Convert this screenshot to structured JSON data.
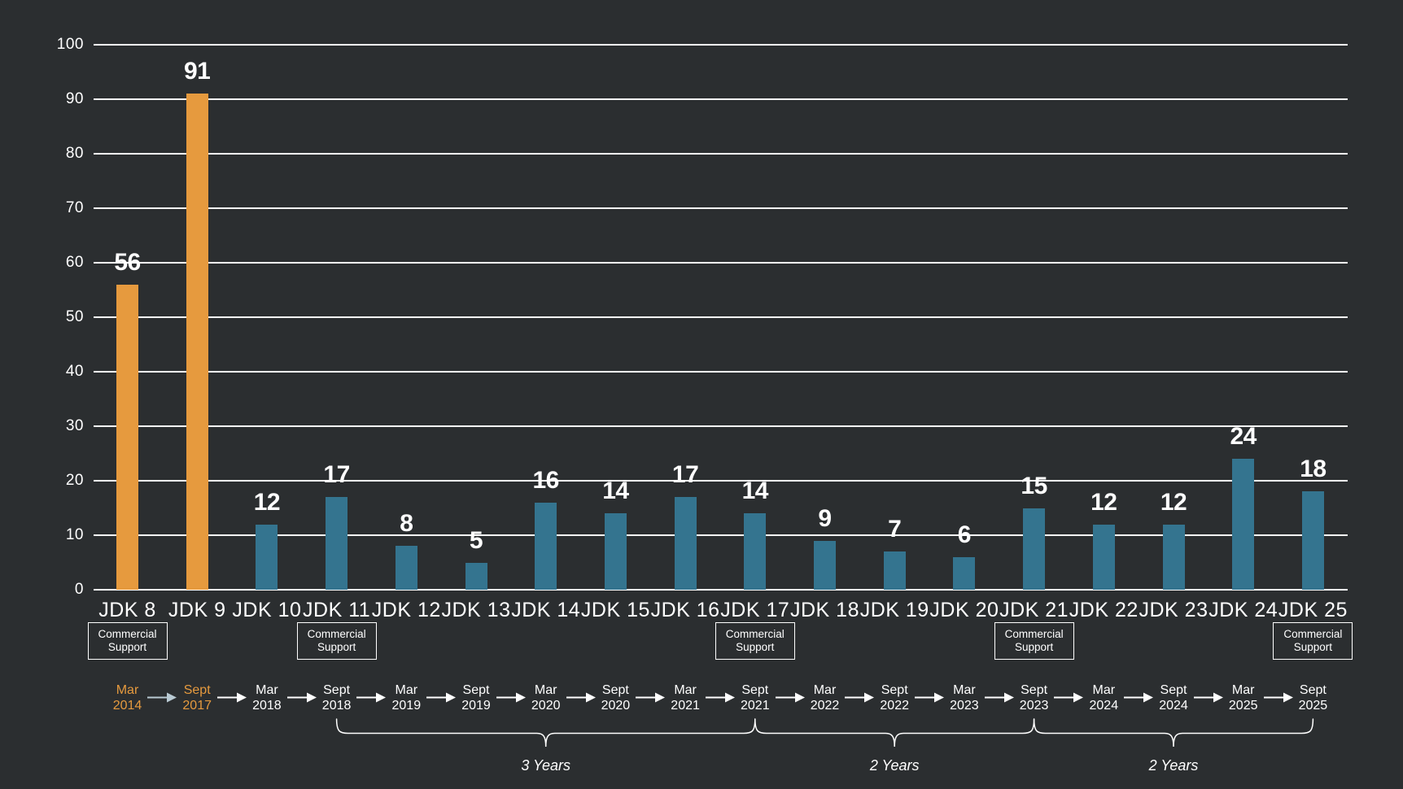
{
  "chart_data": {
    "type": "bar",
    "title": "",
    "xlabel": "",
    "ylabel": "",
    "ylim": [
      0,
      100
    ],
    "ytick_step": 10,
    "grid": true,
    "legend": "none",
    "categories": [
      "JDK 8",
      "JDK 9",
      "JDK 10",
      "JDK 11",
      "JDK 12",
      "JDK 13",
      "JDK 14",
      "JDK 15",
      "JDK 16",
      "JDK 17",
      "JDK 18",
      "JDK 19",
      "JDK 20",
      "JDK 21",
      "JDK 22",
      "JDK 23",
      "JDK 24",
      "JDK 25"
    ],
    "values": [
      56,
      91,
      12,
      17,
      8,
      5,
      16,
      14,
      17,
      14,
      9,
      7,
      6,
      15,
      12,
      12,
      24,
      18
    ],
    "highlight_indices": [
      0,
      1
    ],
    "colors": {
      "background": "#2B2E30",
      "bar_default": "#34748F",
      "bar_highlight": "#E69A3E",
      "grid": "#FFFFFF",
      "text": "#FFFFFF",
      "timeline_highlight": "#E69A3E",
      "first_arrow": "#B9CAD3",
      "arrow": "#FFFFFF"
    },
    "support_badges": {
      "line1": "Commercial",
      "line2": "Support",
      "columns": [
        0,
        3,
        9,
        13,
        17
      ]
    },
    "timeline": [
      {
        "month": "Mar",
        "year": "2014",
        "highlight": true
      },
      {
        "month": "Sept",
        "year": "2017",
        "highlight": true
      },
      {
        "month": "Mar",
        "year": "2018",
        "highlight": false
      },
      {
        "month": "Sept",
        "year": "2018",
        "highlight": false
      },
      {
        "month": "Mar",
        "year": "2019",
        "highlight": false
      },
      {
        "month": "Sept",
        "year": "2019",
        "highlight": false
      },
      {
        "month": "Mar",
        "year": "2020",
        "highlight": false
      },
      {
        "month": "Sept",
        "year": "2020",
        "highlight": false
      },
      {
        "month": "Mar",
        "year": "2021",
        "highlight": false
      },
      {
        "month": "Sept",
        "year": "2021",
        "highlight": false
      },
      {
        "month": "Mar",
        "year": "2022",
        "highlight": false
      },
      {
        "month": "Sept",
        "year": "2022",
        "highlight": false
      },
      {
        "month": "Mar",
        "year": "2023",
        "highlight": false
      },
      {
        "month": "Sept",
        "year": "2023",
        "highlight": false
      },
      {
        "month": "Mar",
        "year": "2024",
        "highlight": false
      },
      {
        "month": "Sept",
        "year": "2024",
        "highlight": false
      },
      {
        "month": "Mar",
        "year": "2025",
        "highlight": false
      },
      {
        "month": "Sept",
        "year": "2025",
        "highlight": false
      }
    ],
    "braces": [
      {
        "from_index": 3,
        "to_index": 9,
        "mid_index": 6,
        "label": "3 Years"
      },
      {
        "from_index": 9,
        "to_index": 13,
        "mid_index": 11,
        "label": "2 Years"
      },
      {
        "from_index": 13,
        "to_index": 17,
        "mid_index": 15,
        "label": "2 Years"
      }
    ]
  }
}
